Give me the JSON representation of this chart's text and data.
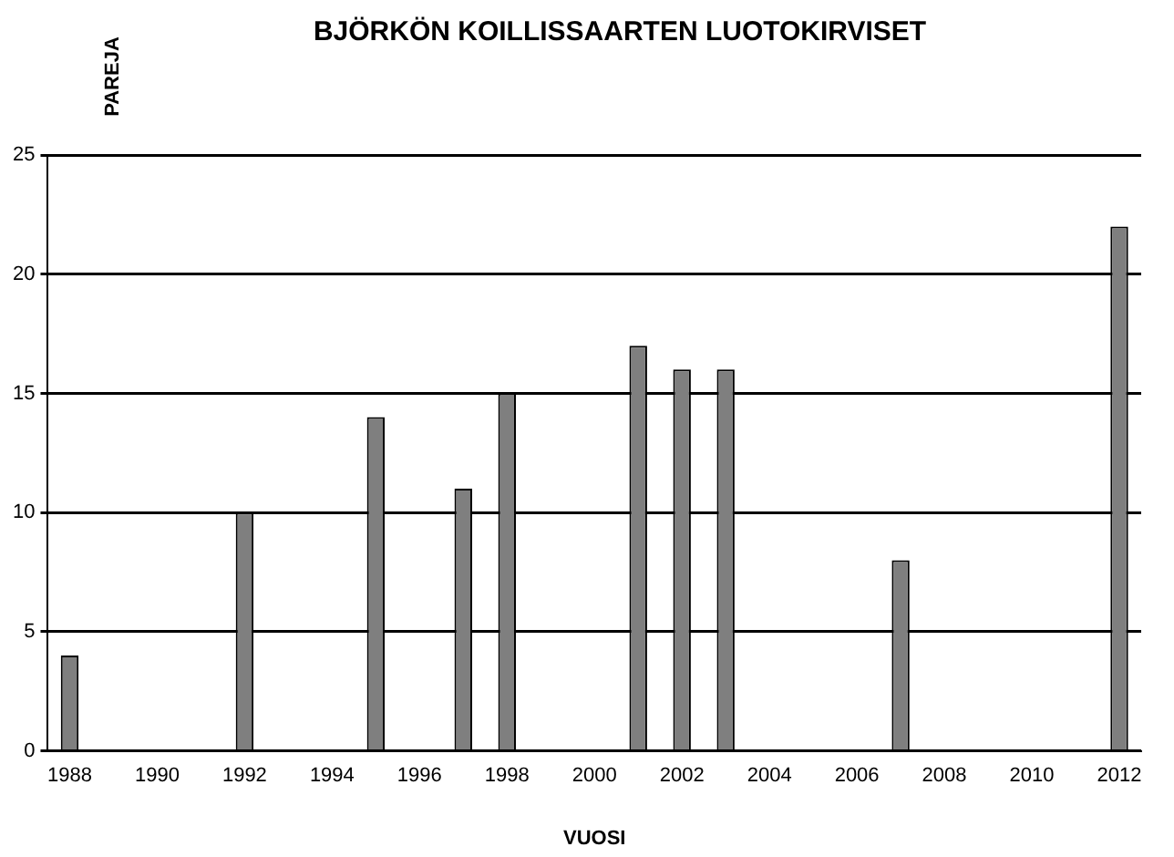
{
  "chart_data": {
    "type": "bar",
    "title": "BJÖRKÖN KOILLISSAARTEN LUOTOKIRVISET",
    "xlabel": "VUOSI",
    "ylabel": "PAREJA",
    "categories": [
      "1988",
      null,
      "1990",
      null,
      "1992",
      null,
      "1994",
      null,
      "1996",
      null,
      "1998",
      null,
      "2000",
      null,
      "2002",
      null,
      "2004",
      null,
      "2006",
      null,
      "2008",
      null,
      "2010",
      null,
      "2012"
    ],
    "values": [
      4,
      null,
      null,
      null,
      10,
      null,
      null,
      14,
      null,
      11,
      15,
      null,
      null,
      17,
      16,
      16,
      null,
      null,
      null,
      8,
      null,
      null,
      null,
      null,
      22
    ],
    "color": "#7f7f7f",
    "ylim": [
      0,
      25
    ],
    "yticks": [
      0,
      5,
      10,
      15,
      20,
      25
    ],
    "grid": "y",
    "legend": false
  }
}
